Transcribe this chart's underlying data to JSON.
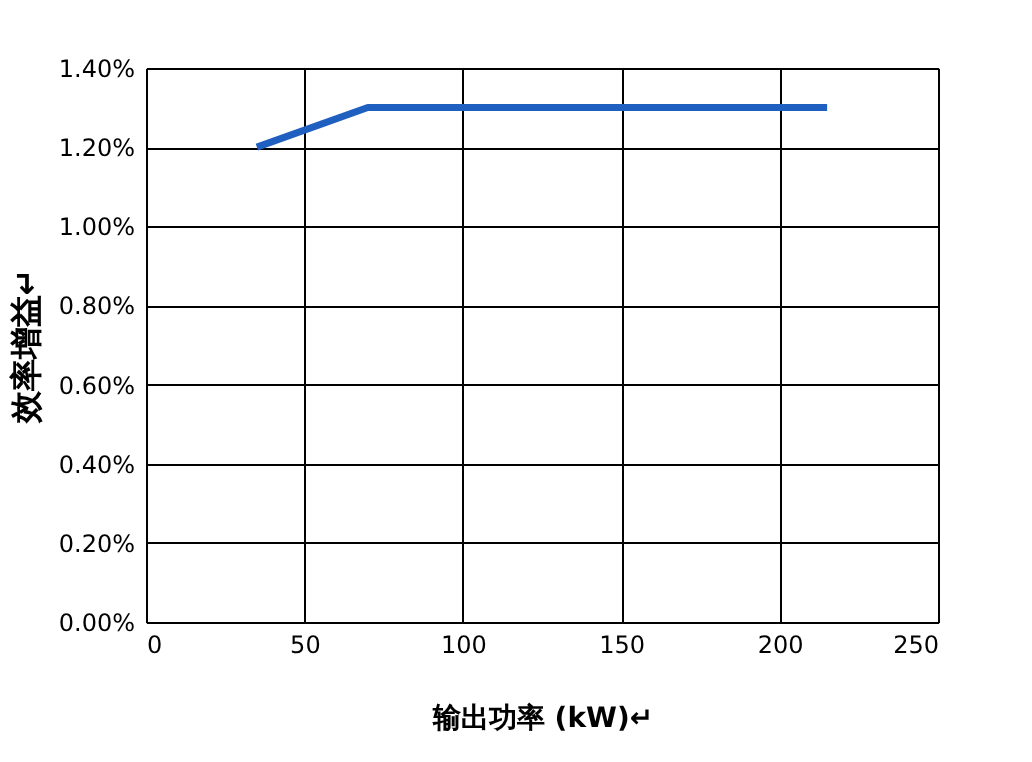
{
  "chart_data": {
    "type": "line",
    "xlabel": "输出功率 (kW)↵",
    "ylabel": "效率增益↵",
    "series": [
      {
        "color": "#1f5fbf",
        "x": [
          35,
          70,
          215
        ],
        "values": [
          1.2,
          1.3,
          1.3
        ]
      }
    ],
    "xlim": [
      0,
      250
    ],
    "xticks": [
      0,
      50,
      100,
      150,
      200,
      250
    ],
    "ylim": [
      0,
      1.4
    ],
    "yticks": [
      {
        "value": 0,
        "label": "0.00%"
      },
      {
        "value": 0.2,
        "label": "0.20%"
      },
      {
        "value": 0.4,
        "label": "0.40%"
      },
      {
        "value": 0.6,
        "label": "0.60%"
      },
      {
        "value": 0.8,
        "label": "0.80%"
      },
      {
        "value": 1.0,
        "label": "1.00%"
      },
      {
        "value": 1.2,
        "label": "1.20%"
      },
      {
        "value": 1.4,
        "label": "1.40%"
      }
    ],
    "grid": true,
    "marker": "none",
    "line_style": "solid"
  }
}
